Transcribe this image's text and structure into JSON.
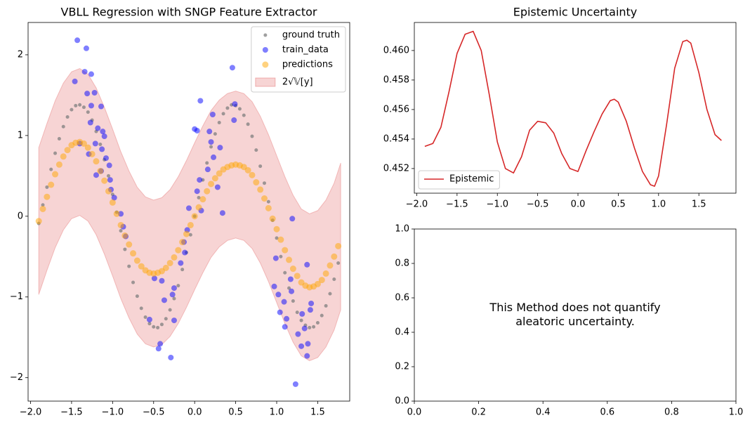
{
  "chart_data": [
    {
      "type": "scatter",
      "title": "VBLL Regression with SNGP Feature Extractor",
      "xlim": [
        -2.03,
        1.89
      ],
      "ylim": [
        -2.29,
        2.4
      ],
      "xticks": [
        {
          "value": -2,
          "label": "−2.0"
        },
        {
          "value": -1.5,
          "label": "−1.5"
        },
        {
          "value": -1,
          "label": "−1.0"
        },
        {
          "value": -0.5,
          "label": "−0.5"
        },
        {
          "value": 0,
          "label": "0.0"
        },
        0.5,
        {
          "value": 1,
          "label": "1.0"
        },
        1.5
      ],
      "yticks": [
        {
          "value": -2,
          "label": "−2"
        },
        {
          "value": -1,
          "label": "−1"
        },
        0,
        1,
        2
      ],
      "legend": "upper right",
      "series": [
        {
          "name": "ground truth",
          "color": "#7f7f7f",
          "x": [
            -1.9,
            -1.85,
            -1.8,
            -1.75,
            -1.7,
            -1.65,
            -1.6,
            -1.55,
            -1.5,
            -1.45,
            -1.4,
            -1.35,
            -1.3,
            -1.25,
            -1.2,
            -1.15,
            -1.1,
            -1.05,
            -1.0,
            -0.95,
            -0.9,
            -0.85,
            -0.8,
            -0.75,
            -0.7,
            -0.65,
            -0.6,
            -0.55,
            -0.5,
            -0.45,
            -0.4,
            -0.35,
            -0.3,
            -0.25,
            -0.2,
            -0.15,
            -0.1,
            -0.05,
            0,
            0.05,
            0.1,
            0.15,
            0.2,
            0.25,
            0.3,
            0.35,
            0.4,
            0.45,
            0.5,
            0.55,
            0.6,
            0.65,
            0.7,
            0.75,
            0.8,
            0.85,
            0.9,
            0.95,
            1.0,
            1.05,
            1.1,
            1.15,
            1.2,
            1.25,
            1.3,
            1.35,
            1.4,
            1.45,
            1.5,
            1.55,
            1.6,
            1.65,
            1.7,
            1.75
          ],
          "values": [
            -0.09,
            0.14,
            0.36,
            0.58,
            0.78,
            0.96,
            1.11,
            1.23,
            1.32,
            1.37,
            1.38,
            1.35,
            1.29,
            1.19,
            1.05,
            0.89,
            0.7,
            0.5,
            0.27,
            0.05,
            -0.18,
            -0.41,
            -0.62,
            -0.82,
            -0.99,
            -1.14,
            -1.25,
            -1.33,
            -1.37,
            -1.38,
            -1.34,
            -1.27,
            -1.16,
            -1.02,
            -0.86,
            -0.66,
            -0.45,
            -0.23,
            0,
            0.23,
            0.45,
            0.66,
            0.86,
            1.02,
            1.16,
            1.27,
            1.34,
            1.38,
            1.37,
            1.33,
            1.25,
            1.14,
            0.99,
            0.82,
            0.62,
            0.41,
            0.18,
            -0.05,
            -0.27,
            -0.5,
            -0.7,
            -0.89,
            -1.05,
            -1.19,
            -1.29,
            -1.35,
            -1.38,
            -1.37,
            -1.32,
            -1.23,
            -1.11,
            -0.96,
            -0.78,
            -0.58
          ]
        },
        {
          "name": "train_data",
          "color": "#0000ff",
          "x": [
            -1.43,
            -1.32,
            -1.46,
            -1.34,
            -1.26,
            -1.31,
            -1.22,
            -1.26,
            -1.14,
            -1.27,
            -1.18,
            -1.12,
            -1.1,
            -1.21,
            -1.4,
            -1.13,
            -1.29,
            -1.08,
            -1.04,
            -1.14,
            -1.2,
            -1.03,
            -1.02,
            -0.98,
            -0.9,
            -0.87,
            -0.84,
            -0.49,
            -0.55,
            -0.4,
            -0.37,
            -0.42,
            -0.44,
            -0.29,
            -0.25,
            -0.25,
            -0.27,
            -0.17,
            -0.13,
            -0.12,
            -0.09,
            -0.07,
            0.0,
            0.07,
            0.03,
            0.06,
            0.03,
            0.08,
            0.16,
            0.18,
            0.2,
            0.23,
            0.28,
            0.22,
            0.31,
            0.34,
            0.46,
            0.49,
            0.48,
            0.99,
            0.97,
            1.02,
            1.09,
            1.04,
            1.12,
            1.1,
            1.19,
            1.17,
            1.23,
            1.18,
            1.31,
            1.34,
            1.37,
            1.38,
            1.41,
            1.37,
            1.3,
            1.42,
            1.26
          ],
          "values": [
            2.18,
            2.08,
            1.67,
            1.79,
            1.76,
            1.52,
            1.53,
            1.37,
            1.36,
            1.16,
            1.09,
            1.05,
            0.99,
            0.9,
            0.9,
            0.83,
            0.77,
            0.72,
            0.63,
            0.56,
            0.51,
            0.45,
            0.33,
            0.23,
            0.03,
            -0.13,
            -0.25,
            -0.77,
            -1.28,
            -0.8,
            -1.04,
            -1.58,
            -1.64,
            -1.75,
            -1.29,
            -0.89,
            -0.97,
            -0.58,
            -0.32,
            -0.45,
            -0.17,
            0.1,
            1.08,
            1.43,
            1.06,
            0.45,
            0.31,
            0.07,
            0.58,
            1.05,
            0.92,
            0.73,
            0.36,
            1.26,
            0.85,
            0.04,
            1.84,
            1.39,
            1.19,
            -0.52,
            -0.87,
            -0.97,
            -1.06,
            -1.19,
            -1.27,
            -1.37,
            -0.03,
            -0.78,
            -2.08,
            -0.93,
            -1.21,
            -1.39,
            -0.6,
            -1.58,
            -1.16,
            -1.73,
            -1.61,
            -1.08,
            -1.46
          ]
        },
        {
          "name": "predictions",
          "color": "#ffa500",
          "x": [
            -1.9,
            -1.85,
            -1.8,
            -1.75,
            -1.7,
            -1.65,
            -1.6,
            -1.55,
            -1.5,
            -1.45,
            -1.4,
            -1.35,
            -1.3,
            -1.25,
            -1.2,
            -1.15,
            -1.1,
            -1.05,
            -1.0,
            -0.95,
            -0.9,
            -0.85,
            -0.8,
            -0.75,
            -0.7,
            -0.65,
            -0.6,
            -0.55,
            -0.5,
            -0.45,
            -0.4,
            -0.35,
            -0.3,
            -0.25,
            -0.2,
            -0.15,
            -0.1,
            -0.05,
            0,
            0.05,
            0.1,
            0.15,
            0.2,
            0.25,
            0.3,
            0.35,
            0.4,
            0.45,
            0.5,
            0.55,
            0.6,
            0.65,
            0.7,
            0.75,
            0.8,
            0.85,
            0.9,
            0.95,
            1.0,
            1.05,
            1.1,
            1.15,
            1.2,
            1.25,
            1.3,
            1.35,
            1.4,
            1.45,
            1.5,
            1.55,
            1.6,
            1.65,
            1.7,
            1.75
          ],
          "values": [
            -0.06,
            0.09,
            0.24,
            0.39,
            0.52,
            0.64,
            0.74,
            0.82,
            0.88,
            0.91,
            0.92,
            0.9,
            0.85,
            0.77,
            0.68,
            0.56,
            0.44,
            0.31,
            0.17,
            0.03,
            -0.11,
            -0.24,
            -0.35,
            -0.46,
            -0.55,
            -0.62,
            -0.67,
            -0.7,
            -0.71,
            -0.7,
            -0.68,
            -0.64,
            -0.58,
            -0.51,
            -0.42,
            -0.32,
            -0.22,
            -0.11,
            0,
            0.11,
            0.21,
            0.31,
            0.4,
            0.47,
            0.53,
            0.58,
            0.61,
            0.63,
            0.64,
            0.63,
            0.61,
            0.57,
            0.51,
            0.42,
            0.33,
            0.22,
            0.1,
            -0.03,
            -0.16,
            -0.29,
            -0.42,
            -0.54,
            -0.65,
            -0.74,
            -0.82,
            -0.86,
            -0.88,
            -0.87,
            -0.84,
            -0.79,
            -0.71,
            -0.61,
            -0.5,
            -0.37
          ]
        }
      ],
      "fill": {
        "name": "2√𝕍[y]",
        "color": "#d62728",
        "x": [
          -1.9,
          -1.8,
          -1.7,
          -1.6,
          -1.5,
          -1.4,
          -1.3,
          -1.2,
          -1.1,
          -1.0,
          -0.9,
          -0.8,
          -0.7,
          -0.6,
          -0.5,
          -0.4,
          -0.3,
          -0.2,
          -0.1,
          0,
          0.1,
          0.2,
          0.3,
          0.4,
          0.5,
          0.6,
          0.7,
          0.8,
          0.9,
          1.0,
          1.1,
          1.2,
          1.3,
          1.4,
          1.5,
          1.6,
          1.7,
          1.78
        ],
        "upper": [
          0.85,
          1.15,
          1.43,
          1.65,
          1.79,
          1.83,
          1.76,
          1.59,
          1.35,
          1.08,
          0.8,
          0.56,
          0.36,
          0.24,
          0.2,
          0.23,
          0.33,
          0.49,
          0.69,
          0.91,
          1.12,
          1.31,
          1.44,
          1.52,
          1.55,
          1.52,
          1.42,
          1.24,
          1.01,
          0.75,
          0.49,
          0.26,
          0.09,
          0.03,
          0.07,
          0.2,
          0.41,
          0.66
        ],
        "lower": [
          -0.97,
          -0.67,
          -0.39,
          -0.17,
          -0.03,
          0.01,
          -0.06,
          -0.23,
          -0.47,
          -0.74,
          -1.02,
          -1.26,
          -1.46,
          -1.58,
          -1.62,
          -1.59,
          -1.49,
          -1.33,
          -1.13,
          -0.91,
          -0.7,
          -0.51,
          -0.38,
          -0.3,
          -0.27,
          -0.3,
          -0.4,
          -0.58,
          -0.81,
          -1.07,
          -1.33,
          -1.56,
          -1.73,
          -1.79,
          -1.75,
          -1.62,
          -1.41,
          -1.16
        ]
      }
    },
    {
      "type": "line",
      "title": "Epistemic Uncertainty",
      "xlim": [
        -2.03,
        1.96
      ],
      "ylim": [
        0.45033,
        0.4619
      ],
      "xticks": [
        {
          "value": -2,
          "label": "−2.0"
        },
        {
          "value": -1.5,
          "label": "−1.5"
        },
        {
          "value": -1,
          "label": "−1.0"
        },
        {
          "value": -0.5,
          "label": "−0.5"
        },
        {
          "value": 0,
          "label": "0.0"
        },
        0.5,
        {
          "value": 1,
          "label": "1.0"
        },
        1.5
      ],
      "yticks": [
        0.452,
        0.454,
        0.456,
        0.458,
        {
          "value": 0.46,
          "label": "0.460"
        }
      ],
      "legend": "lower left",
      "series": [
        {
          "name": "Epistemic",
          "color": "#d62728",
          "x": [
            -1.9,
            -1.8,
            -1.7,
            -1.6,
            -1.5,
            -1.4,
            -1.3,
            -1.2,
            -1.1,
            -1.0,
            -0.9,
            -0.8,
            -0.7,
            -0.6,
            -0.5,
            -0.4,
            -0.3,
            -0.2,
            -0.1,
            0.0,
            0.1,
            0.2,
            0.3,
            0.4,
            0.45,
            0.5,
            0.6,
            0.7,
            0.8,
            0.9,
            0.95,
            1.0,
            1.1,
            1.2,
            1.3,
            1.35,
            1.4,
            1.5,
            1.6,
            1.7,
            1.78
          ],
          "values": [
            0.4535,
            0.4537,
            0.4548,
            0.4572,
            0.4598,
            0.4611,
            0.4613,
            0.46,
            0.457,
            0.4538,
            0.452,
            0.4517,
            0.4528,
            0.4546,
            0.4552,
            0.4551,
            0.4544,
            0.453,
            0.452,
            0.4518,
            0.4532,
            0.4545,
            0.4557,
            0.4566,
            0.4567,
            0.4565,
            0.4552,
            0.4534,
            0.4518,
            0.4509,
            0.4508,
            0.4515,
            0.455,
            0.4588,
            0.4606,
            0.4607,
            0.4605,
            0.4585,
            0.456,
            0.4543,
            0.4539
          ]
        }
      ]
    },
    {
      "type": "text",
      "xlim": [
        0,
        1
      ],
      "ylim": [
        0,
        1
      ],
      "xticks": [
        {
          "value": 0,
          "label": "0.0"
        },
        0.2,
        0.4,
        0.6,
        0.8,
        {
          "value": 1,
          "label": "1.0"
        }
      ],
      "yticks": [
        {
          "value": 0,
          "label": "0.0"
        },
        0.2,
        0.4,
        0.6,
        0.8,
        {
          "value": 1,
          "label": "1.0"
        }
      ],
      "annotation": [
        "This Method does not quantify",
        "aleatoric uncertainty."
      ]
    }
  ]
}
